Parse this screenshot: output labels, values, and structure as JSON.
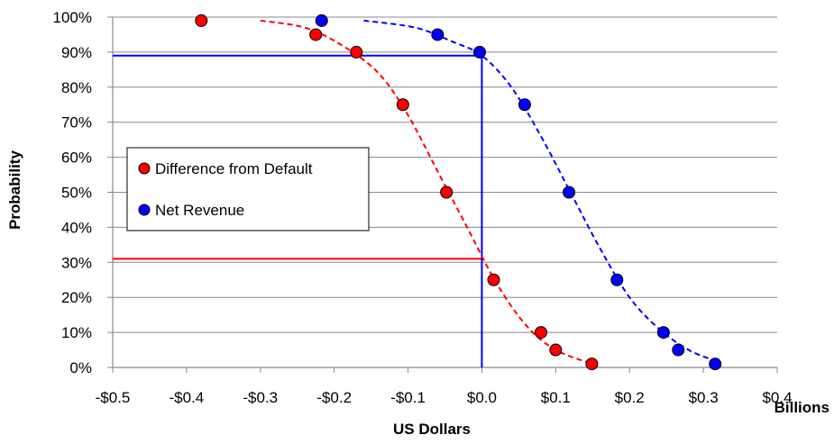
{
  "chart_data": {
    "type": "scatter",
    "xlabel": "US Dollars",
    "xunit": "Billions",
    "ylabel": "Probability",
    "xlim": [
      -0.5,
      0.4
    ],
    "ylim": [
      0,
      100
    ],
    "x_ticks": [
      -0.5,
      -0.4,
      -0.3,
      -0.2,
      -0.1,
      0.0,
      0.1,
      0.2,
      0.3,
      0.4
    ],
    "x_tick_labels": [
      "-$0.5",
      "-$0.4",
      "-$0.3",
      "-$0.2",
      "-$0.1",
      "$0.0",
      "$0.1",
      "$0.2",
      "$0.3",
      "$0.4"
    ],
    "y_ticks": [
      0,
      10,
      20,
      30,
      40,
      50,
      60,
      70,
      80,
      90,
      100
    ],
    "y_tick_labels": [
      "0%",
      "10%",
      "20%",
      "30%",
      "40%",
      "50%",
      "60%",
      "70%",
      "80%",
      "90%",
      "100%"
    ],
    "grid": "horizontal",
    "legend_position": "center-left",
    "series": [
      {
        "name": "Difference from Default",
        "color": "#ff0000",
        "points": [
          {
            "x": -0.38,
            "y": 99
          },
          {
            "x": -0.225,
            "y": 95
          },
          {
            "x": -0.17,
            "y": 90
          },
          {
            "x": -0.107,
            "y": 75
          },
          {
            "x": -0.048,
            "y": 50
          },
          {
            "x": 0.016,
            "y": 25
          },
          {
            "x": 0.08,
            "y": 10
          },
          {
            "x": 0.1,
            "y": 5
          },
          {
            "x": 0.149,
            "y": 1
          }
        ],
        "fit_curve": [
          {
            "x": -0.3,
            "y": 99
          },
          {
            "x": -0.24,
            "y": 97
          },
          {
            "x": -0.19,
            "y": 92
          },
          {
            "x": -0.14,
            "y": 84
          },
          {
            "x": -0.1,
            "y": 72
          },
          {
            "x": -0.06,
            "y": 56
          },
          {
            "x": -0.02,
            "y": 40
          },
          {
            "x": 0.02,
            "y": 24
          },
          {
            "x": 0.06,
            "y": 12
          },
          {
            "x": 0.1,
            "y": 5
          },
          {
            "x": 0.15,
            "y": 1
          }
        ],
        "reference_line": {
          "x": 0.0,
          "y": 31
        }
      },
      {
        "name": "Net Revenue",
        "color": "#0000ff",
        "points": [
          {
            "x": -0.217,
            "y": 99
          },
          {
            "x": -0.06,
            "y": 95
          },
          {
            "x": -0.003,
            "y": 90
          },
          {
            "x": 0.058,
            "y": 75
          },
          {
            "x": 0.118,
            "y": 50
          },
          {
            "x": 0.183,
            "y": 25
          },
          {
            "x": 0.246,
            "y": 10
          },
          {
            "x": 0.266,
            "y": 5
          },
          {
            "x": 0.316,
            "y": 1
          }
        ],
        "fit_curve": [
          {
            "x": -0.16,
            "y": 99
          },
          {
            "x": -0.09,
            "y": 97
          },
          {
            "x": -0.04,
            "y": 93
          },
          {
            "x": 0.0,
            "y": 89
          },
          {
            "x": 0.04,
            "y": 80
          },
          {
            "x": 0.08,
            "y": 66
          },
          {
            "x": 0.12,
            "y": 50
          },
          {
            "x": 0.16,
            "y": 34
          },
          {
            "x": 0.2,
            "y": 20
          },
          {
            "x": 0.24,
            "y": 11
          },
          {
            "x": 0.28,
            "y": 5
          },
          {
            "x": 0.315,
            "y": 2
          }
        ],
        "reference_line": {
          "x": 0.0,
          "y": 89
        }
      }
    ]
  }
}
